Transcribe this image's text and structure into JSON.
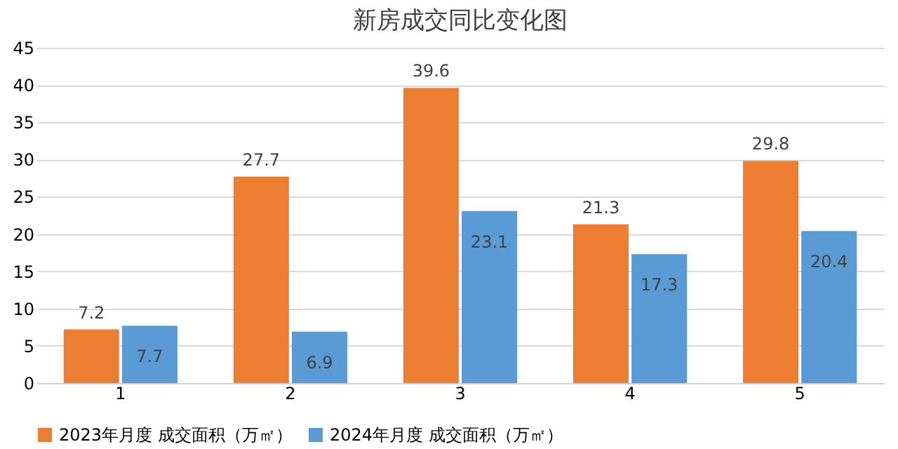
{
  "chart_data": {
    "type": "bar",
    "title": "新房成交同比变化图",
    "categories": [
      "1",
      "2",
      "3",
      "4",
      "5"
    ],
    "series": [
      {
        "name": "2023年月度 成交面积（万㎡）",
        "color": "#ed7d31",
        "values": [
          7.2,
          27.7,
          39.6,
          21.3,
          29.8
        ]
      },
      {
        "name": "2024年月度 成交面积（万㎡）",
        "color": "#5b9bd5",
        "values": [
          7.7,
          6.9,
          23.1,
          17.3,
          20.4
        ]
      }
    ],
    "ylim": [
      0,
      45
    ],
    "yticks": [
      0,
      5,
      10,
      15,
      20,
      25,
      30,
      35,
      40,
      45
    ],
    "grid": "y",
    "legend": "bottom",
    "data_labels": true
  }
}
